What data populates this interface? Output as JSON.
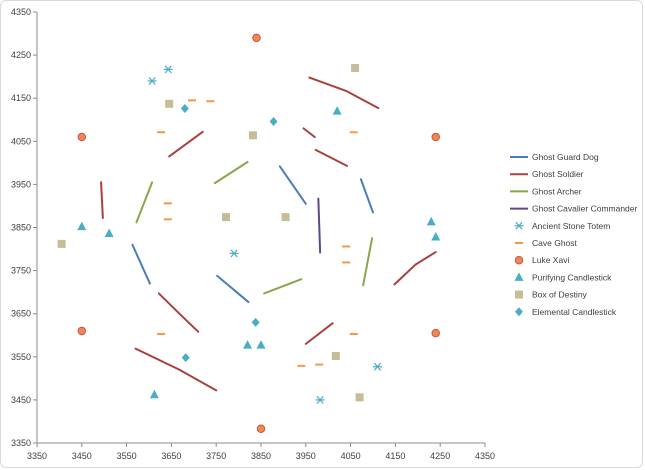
{
  "chart_data": {
    "type": "scatter",
    "title": "",
    "xlabel": "",
    "ylabel": "",
    "xlim": [
      3350,
      4350
    ],
    "ylim": [
      3350,
      4350
    ],
    "x_ticks": [
      "3350",
      "3450",
      "3550",
      "3650",
      "3750",
      "3850",
      "3950",
      "4050",
      "4150",
      "4250",
      "4350"
    ],
    "y_ticks": [
      "3350",
      "3450",
      "3550",
      "3650",
      "3750",
      "3850",
      "3950",
      "4050",
      "4150",
      "4250",
      "4350"
    ],
    "grid": false,
    "legend_position": "right",
    "series": [
      {
        "name": "Ghost Guard Dog",
        "kind": "line",
        "color": "#4a7ebb",
        "segments": [
          [
            [
              3563,
              3810
            ],
            [
              3602,
              3720
            ]
          ],
          [
            [
              3752,
              3738
            ],
            [
              3822,
              3677
            ]
          ],
          [
            [
              3892,
              3992
            ],
            [
              3950,
              3905
            ]
          ],
          [
            [
              4073,
              3962
            ],
            [
              4100,
              3885
            ]
          ]
        ]
      },
      {
        "name": "Ghost Soldier",
        "kind": "line",
        "color": "#a9403e",
        "segments": [
          [
            [
              3493,
              3955
            ],
            [
              3497,
              3872
            ]
          ],
          [
            [
              3570,
              3569
            ],
            [
              3668,
              3520
            ],
            [
              3750,
              3472
            ]
          ],
          [
            [
              3622,
              3697
            ],
            [
              3665,
              3653
            ],
            [
              3710,
              3608
            ]
          ],
          [
            [
              3645,
              4015
            ],
            [
              3720,
              4072
            ]
          ],
          [
            [
              3945,
              4080
            ],
            [
              3970,
              4060
            ]
          ],
          [
            [
              3958,
              4198
            ],
            [
              4040,
              4167
            ],
            [
              4112,
              4127
            ]
          ],
          [
            [
              3950,
              3580
            ],
            [
              4010,
              3628
            ]
          ],
          [
            [
              3972,
              4030
            ],
            [
              4042,
              3993
            ]
          ],
          [
            [
              4148,
              3718
            ],
            [
              4195,
              3764
            ],
            [
              4240,
              3793
            ]
          ]
        ]
      },
      {
        "name": "Ghost Archer",
        "kind": "line",
        "color": "#8aa64d",
        "segments": [
          [
            [
              3572,
              3862
            ],
            [
              3607,
              3955
            ]
          ],
          [
            [
              3747,
              3953
            ],
            [
              3820,
              4002
            ]
          ],
          [
            [
              3857,
              3697
            ],
            [
              3940,
              3730
            ]
          ],
          [
            [
              4078,
              3716
            ],
            [
              4098,
              3825
            ]
          ]
        ]
      },
      {
        "name": "Ghost Cavalier Commander",
        "kind": "line",
        "color": "#5d4a8a",
        "segments": [
          [
            [
              3978,
              3917
            ],
            [
              3982,
              3792
            ]
          ]
        ]
      },
      {
        "name": "Ancient Stone Totem",
        "kind": "marker",
        "marker": "asterisk",
        "color": "#4bacc6",
        "points": [
          [
            3607,
            4190
          ],
          [
            3643,
            4217
          ],
          [
            3790,
            3790
          ],
          [
            3982,
            3450
          ],
          [
            4110,
            3527
          ]
        ]
      },
      {
        "name": "Cave Ghost",
        "kind": "marker",
        "marker": "dash",
        "color": "#f79646",
        "points": [
          [
            3627,
            4071
          ],
          [
            3627,
            3603
          ],
          [
            3642,
            3906
          ],
          [
            3642,
            3869
          ],
          [
            3696,
            4145
          ],
          [
            3737,
            4143
          ],
          [
            3940,
            3529
          ],
          [
            3980,
            3532
          ],
          [
            4040,
            3806
          ],
          [
            4040,
            3769
          ],
          [
            4057,
            4071
          ],
          [
            4057,
            3603
          ]
        ]
      },
      {
        "name": "Luke Xavi",
        "kind": "marker",
        "marker": "circle",
        "color": "#f0874f",
        "points": [
          [
            3450,
            4060
          ],
          [
            3450,
            3610
          ],
          [
            3840,
            4290
          ],
          [
            3850,
            3383
          ],
          [
            4240,
            4060
          ],
          [
            4240,
            3605
          ]
        ]
      },
      {
        "name": "Purifying Candlestick",
        "kind": "marker",
        "marker": "triangle",
        "color": "#4bacc6",
        "points": [
          [
            3450,
            3852
          ],
          [
            3511,
            3836
          ],
          [
            3612,
            3462
          ],
          [
            3820,
            3577
          ],
          [
            3850,
            3577
          ],
          [
            4020,
            4120
          ],
          [
            4230,
            3863
          ],
          [
            4240,
            3828
          ]
        ]
      },
      {
        "name": "Box of Destiny",
        "kind": "marker",
        "marker": "square",
        "color": "#c4bd97",
        "points": [
          [
            3405,
            3812
          ],
          [
            3645,
            4137
          ],
          [
            3772,
            3874
          ],
          [
            3832,
            4064
          ],
          [
            3905,
            3874
          ],
          [
            4017,
            3552
          ],
          [
            4060,
            4220
          ],
          [
            4070,
            3456
          ]
        ]
      },
      {
        "name": "Elemental Candlestick",
        "kind": "marker",
        "marker": "diamond",
        "color": "#4bacc6",
        "points": [
          [
            3680,
            4126
          ],
          [
            3682,
            3548
          ],
          [
            3838,
            3630
          ],
          [
            3878,
            4096
          ]
        ]
      }
    ]
  }
}
